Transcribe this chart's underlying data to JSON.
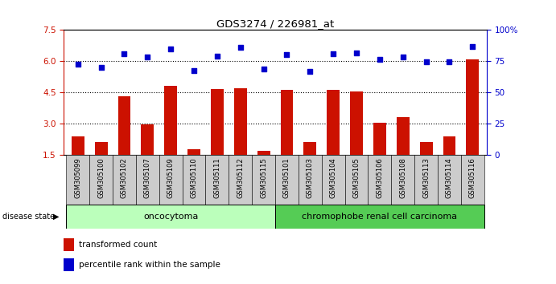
{
  "title": "GDS3274 / 226981_at",
  "samples": [
    "GSM305099",
    "GSM305100",
    "GSM305102",
    "GSM305107",
    "GSM305109",
    "GSM305110",
    "GSM305111",
    "GSM305112",
    "GSM305115",
    "GSM305101",
    "GSM305103",
    "GSM305104",
    "GSM305105",
    "GSM305106",
    "GSM305108",
    "GSM305113",
    "GSM305114",
    "GSM305116"
  ],
  "red_values": [
    2.4,
    2.1,
    4.3,
    2.95,
    4.8,
    1.75,
    4.65,
    4.7,
    1.7,
    4.6,
    2.1,
    4.6,
    4.55,
    3.05,
    3.3,
    2.1,
    2.4,
    6.1
  ],
  "blue_values": [
    5.85,
    5.7,
    6.35,
    6.2,
    6.6,
    5.55,
    6.25,
    6.65,
    5.6,
    6.3,
    5.5,
    6.35,
    6.4,
    6.1,
    6.2,
    5.95,
    5.95,
    6.7
  ],
  "oncocytoma_count": 9,
  "chromophobe_count": 9,
  "group1_label": "oncocytoma",
  "group2_label": "chromophobe renal cell carcinoma",
  "ymin": 1.5,
  "ymax": 7.5,
  "yticks_left": [
    1.5,
    3.0,
    4.5,
    6.0,
    7.5
  ],
  "yticks_right": [
    0,
    25,
    50,
    75,
    100
  ],
  "hlines": [
    3.0,
    4.5,
    6.0
  ],
  "bar_color": "#cc1100",
  "dot_color": "#0000cc",
  "tick_bg_color": "#cccccc",
  "group1_color": "#bbffbb",
  "group2_color": "#55cc55",
  "legend_bar_label": "transformed count",
  "legend_dot_label": "percentile rank within the sample",
  "disease_state_label": "disease state"
}
